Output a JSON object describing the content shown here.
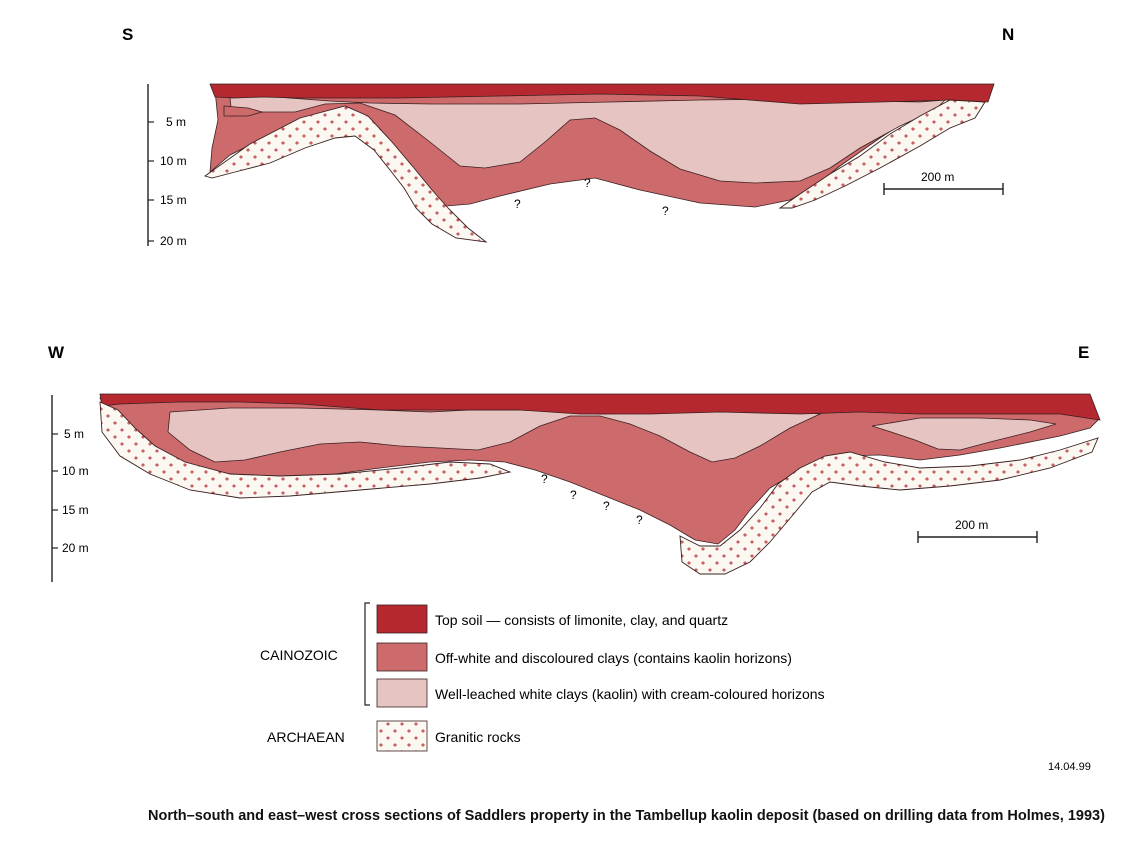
{
  "section_ns": {
    "left_label": "S",
    "right_label": "N",
    "depth_labels": [
      "5 m",
      "10 m",
      "15 m",
      "20 m"
    ],
    "question_marks": [
      "?",
      "?",
      "?"
    ],
    "scale_label": "200 m"
  },
  "section_we": {
    "left_label": "W",
    "right_label": "E",
    "depth_labels": [
      "5 m",
      "10 m",
      "15 m",
      "20 m"
    ],
    "question_marks": [
      "?",
      "?",
      "?",
      "?"
    ],
    "scale_label": "200 m"
  },
  "legend": {
    "groups": [
      {
        "era": "CAINOZOIC",
        "items": [
          {
            "label": "Top soil — consists of limonite, clay, and quartz",
            "color": "#b5282f"
          },
          {
            "label": "Off-white and discoloured clays (contains kaolin horizons)",
            "color": "#cd6a6c"
          },
          {
            "label": "Well-leached white clays (kaolin) with cream-coloured horizons",
            "color": "#e6c4c1"
          }
        ]
      },
      {
        "era": "ARCHAEAN",
        "items": [
          {
            "label": "Granitic rocks",
            "pattern": "plus-on-cream"
          }
        ]
      }
    ]
  },
  "date_stamp": "14.04.99",
  "caption": "North–south and east–west cross sections of Saddlers property in the Tambellup kaolin deposit (based on drilling data from Holmes, 1993)",
  "colors": {
    "top_soil": "#b5282f",
    "off_white_clay": "#cd6a6c",
    "white_clay": "#e6c4c1",
    "granite_bg": "#fbf7f1",
    "granite_cross": "#b5282f"
  }
}
